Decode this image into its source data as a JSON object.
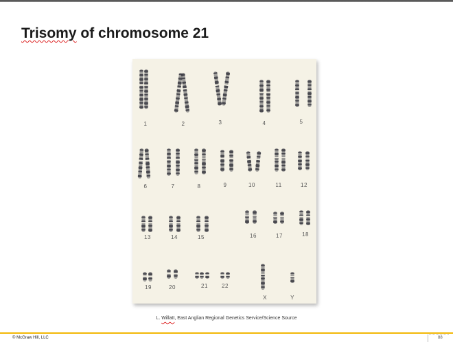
{
  "slide": {
    "title_prefix": "Trisomy",
    "title_rest": " of chromosome 21",
    "caption_prefix": "L. ",
    "caption_flagged": "Willatt",
    "caption_rest": ", East Anglian Regional Genetics Service/Science Source",
    "copyright": "© McGraw Hill, LLC",
    "page_number": "88"
  },
  "karyotype": {
    "labels": [
      "1",
      "2",
      "3",
      "4",
      "5",
      "6",
      "7",
      "8",
      "9",
      "10",
      "11",
      "12",
      "13",
      "14",
      "15",
      "16",
      "17",
      "18",
      "19",
      "20",
      "21",
      "22",
      "X",
      "Y"
    ]
  },
  "colors": {
    "accent_bar": "#f2b705",
    "card_background": "#f5f2e6",
    "chromosome": "#3a3a42",
    "label": "#555555"
  }
}
